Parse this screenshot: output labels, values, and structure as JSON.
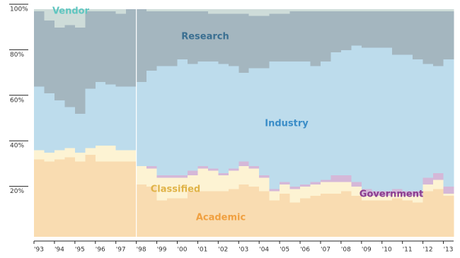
{
  "chart_data": {
    "type": "stacked-area",
    "categories": [
      "'93",
      null,
      "'94",
      null,
      "'95",
      null,
      "'96",
      null,
      "'97",
      null,
      "'98",
      null,
      "'99",
      null,
      "'00",
      null,
      "'01",
      null,
      "'02",
      null,
      "'03",
      null,
      "'04",
      null,
      "'05",
      null,
      "'06",
      null,
      "'07",
      null,
      "'08",
      null,
      "'09",
      null,
      "'10",
      null,
      "'11",
      null,
      "'12",
      null,
      "'13"
    ],
    "ylim": [
      0,
      100
    ],
    "yticks": [
      {
        "value": 20,
        "label": "20%"
      },
      {
        "value": 40,
        "label": "40%"
      },
      {
        "value": 60,
        "label": "60%"
      },
      {
        "value": 80,
        "label": "80%"
      },
      {
        "value": 100,
        "label": "100%"
      }
    ],
    "series": [
      {
        "name": "Academic",
        "color": "#f9dcb1",
        "label_color": "#f0a040",
        "values": [
          34,
          33,
          34,
          35,
          33,
          36,
          33,
          33,
          33,
          33,
          23,
          22,
          16,
          17,
          17,
          20,
          20,
          20,
          20,
          21,
          23,
          22,
          20,
          16,
          19,
          15,
          17,
          18,
          19,
          19,
          20,
          18,
          16,
          16,
          16,
          17,
          16,
          15,
          20,
          21,
          18
        ]
      },
      {
        "name": "Classified",
        "color": "#fdf3d3",
        "label_color": "#e0b347",
        "values": [
          4,
          4,
          4,
          4,
          4,
          3,
          7,
          7,
          5,
          5,
          8,
          8,
          10,
          9,
          9,
          7,
          10,
          9,
          7,
          8,
          8,
          8,
          6,
          4,
          4,
          6,
          5,
          5,
          5,
          5,
          4,
          4,
          2,
          2,
          2,
          2,
          2,
          3,
          3,
          4,
          1
        ]
      },
      {
        "name": "Government",
        "color": "#d5b8d8",
        "label_color": "#8a3d8f",
        "values": [
          0,
          0,
          0,
          0,
          0,
          0,
          0,
          0,
          0,
          0,
          0,
          1,
          1,
          1,
          1,
          2,
          1,
          1,
          1,
          1,
          2,
          1,
          1,
          1,
          1,
          1,
          1,
          1,
          1,
          3,
          3,
          2,
          3,
          2,
          2,
          2,
          2,
          2,
          3,
          3,
          3
        ]
      },
      {
        "name": "Industry",
        "color": "#bddcec",
        "label_color": "#3a8dc8",
        "values": [
          28,
          26,
          22,
          18,
          17,
          26,
          28,
          27,
          28,
          28,
          37,
          42,
          48,
          48,
          51,
          47,
          46,
          47,
          48,
          45,
          39,
          43,
          47,
          56,
          53,
          55,
          54,
          51,
          52,
          54,
          55,
          60,
          62,
          63,
          63,
          59,
          60,
          58,
          50,
          47,
          56
        ]
      },
      {
        "name": "Research",
        "color": "#a4b6bf",
        "label_color": "#3a6f91",
        "values": [
          33,
          32,
          32,
          36,
          38,
          34,
          31,
          32,
          32,
          34,
          32,
          26,
          24,
          24,
          21,
          23,
          22,
          21,
          22,
          23,
          26,
          23,
          23,
          21,
          21,
          22,
          22,
          24,
          22,
          18,
          17,
          15,
          16,
          16,
          16,
          19,
          19,
          21,
          23,
          24,
          21
        ]
      },
      {
        "name": "Vendor",
        "color": "#cedcd9",
        "label_color": "#5fc6c0",
        "values": [
          1,
          5,
          8,
          7,
          8,
          1,
          1,
          1,
          2,
          0,
          0,
          1,
          1,
          1,
          1,
          1,
          1,
          2,
          2,
          2,
          2,
          3,
          3,
          2,
          2,
          1,
          1,
          1,
          1,
          1,
          1,
          1,
          1,
          1,
          1,
          1,
          1,
          1,
          1,
          1,
          1
        ]
      }
    ]
  }
}
